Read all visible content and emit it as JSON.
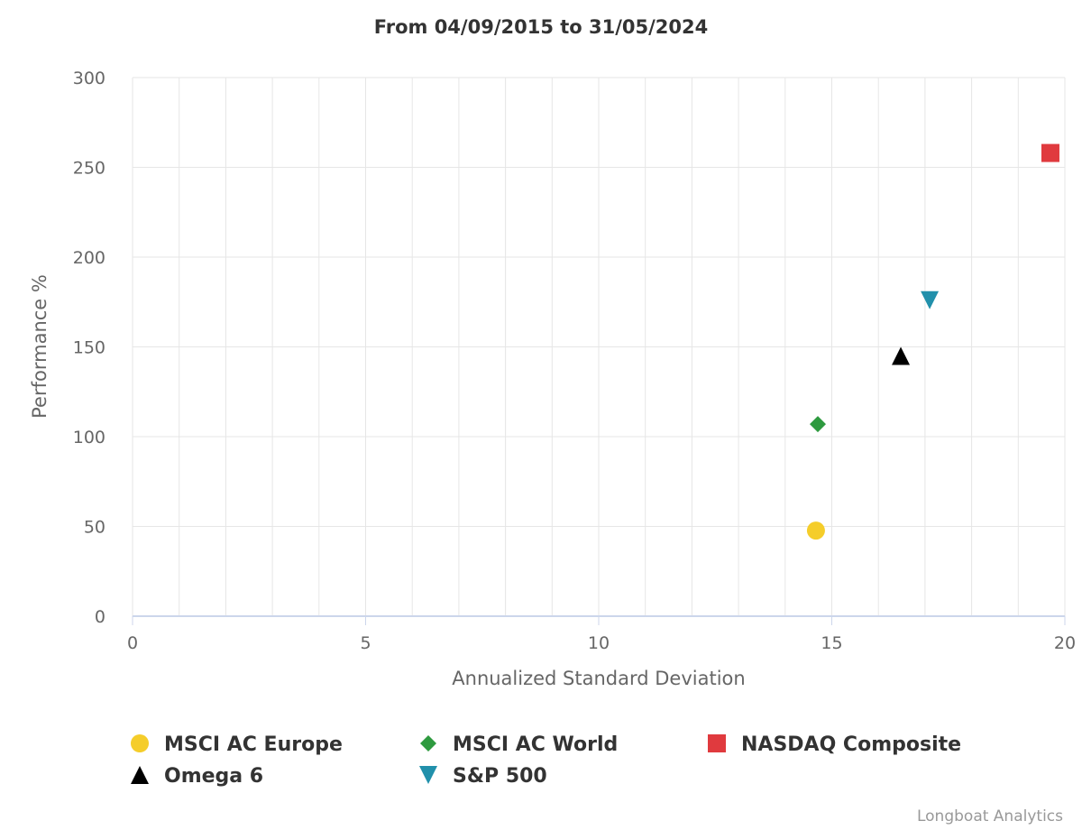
{
  "chart_data": {
    "type": "scatter",
    "title": "From 04/09/2015 to 31/05/2024",
    "xlabel": "Annualized Standard Deviation",
    "ylabel": "Performance %",
    "xlim": [
      0,
      20
    ],
    "ylim": [
      0,
      300
    ],
    "xticks": [
      0,
      5,
      10,
      15,
      20
    ],
    "yticks": [
      0,
      50,
      100,
      150,
      200,
      250,
      300
    ],
    "x_minor_grid_step": 1,
    "grid": true,
    "legend_position": "bottom",
    "series": [
      {
        "name": "MSCI AC Europe",
        "marker": "circle",
        "color": "#f5cd2a",
        "x": 14.66,
        "y": 47.7
      },
      {
        "name": "MSCI AC World",
        "marker": "diamond",
        "color": "#2e9a3f",
        "x": 14.7,
        "y": 107
      },
      {
        "name": "NASDAQ Composite",
        "marker": "square",
        "color": "#e03a3e",
        "x": 19.69,
        "y": 258
      },
      {
        "name": "Omega 6",
        "marker": "triangle",
        "color": "#000000",
        "x": 16.48,
        "y": 145
      },
      {
        "name": "S&P 500",
        "marker": "triangle-down",
        "color": "#2190ab",
        "x": 17.1,
        "y": 176
      }
    ]
  },
  "credits": "Longboat Analytics"
}
